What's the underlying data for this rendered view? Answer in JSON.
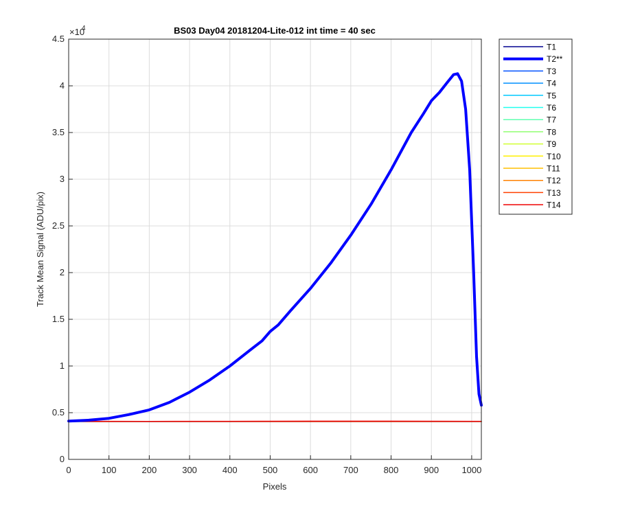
{
  "chart_data": {
    "type": "line",
    "title": "BS03 Day04 20181204-Lite-012 int time = 40 sec",
    "xlabel": "Pixels",
    "ylabel": "Track Mean Signal (ADU/pix)",
    "xlim": [
      0,
      1024
    ],
    "ylim": [
      0,
      45000
    ],
    "x_ticks": [
      0,
      100,
      200,
      300,
      400,
      500,
      600,
      700,
      800,
      900,
      1000
    ],
    "x_tick_labels": [
      "0",
      "100",
      "200",
      "300",
      "400",
      "500",
      "600",
      "700",
      "800",
      "900",
      "1000"
    ],
    "y_ticks": [
      0,
      5000,
      10000,
      15000,
      20000,
      25000,
      30000,
      35000,
      40000,
      45000
    ],
    "y_tick_labels": [
      "0",
      "0.5",
      "1",
      "1.5",
      "2",
      "2.5",
      "3",
      "3.5",
      "4",
      "4.5"
    ],
    "y_exponent_label": "×10",
    "y_exponent_power": "4",
    "grid": true,
    "legend_position": "outside-right",
    "series": [
      {
        "name": "T1",
        "color": "#00008f",
        "width": 1.5,
        "x": [
          0,
          1024
        ],
        "y": [
          4050,
          4050
        ]
      },
      {
        "name": "T2**",
        "color": "#0000ff",
        "width": 4,
        "highlight": true,
        "x": [
          0,
          50,
          100,
          150,
          200,
          250,
          300,
          350,
          400,
          450,
          480,
          500,
          520,
          550,
          600,
          650,
          700,
          750,
          800,
          850,
          880,
          900,
          920,
          940,
          955,
          965,
          975,
          985,
          995,
          1005,
          1012,
          1018,
          1024
        ],
        "y": [
          4100,
          4200,
          4400,
          4800,
          5300,
          6100,
          7200,
          8500,
          10000,
          11700,
          12700,
          13700,
          14400,
          15900,
          18300,
          21000,
          24000,
          27300,
          31000,
          35000,
          37000,
          38400,
          39300,
          40400,
          41200,
          41300,
          40500,
          37500,
          31000,
          20000,
          11000,
          7000,
          5800
        ]
      },
      {
        "name": "T3",
        "color": "#0050ff",
        "width": 1.5,
        "x": [
          0,
          1024
        ],
        "y": [
          4060,
          4060
        ]
      },
      {
        "name": "T4",
        "color": "#0090ff",
        "width": 1.5,
        "x": [
          0,
          1024
        ],
        "y": [
          4055,
          4055
        ]
      },
      {
        "name": "T5",
        "color": "#00c8ff",
        "width": 1.5,
        "x": [
          0,
          1024
        ],
        "y": [
          4060,
          4060
        ]
      },
      {
        "name": "T6",
        "color": "#20ffef",
        "width": 1.5,
        "x": [
          0,
          1024
        ],
        "y": [
          4065,
          4065
        ]
      },
      {
        "name": "T7",
        "color": "#60ffb0",
        "width": 1.5,
        "x": [
          0,
          1024
        ],
        "y": [
          4060,
          4060
        ]
      },
      {
        "name": "T8",
        "color": "#90ff70",
        "width": 1.5,
        "x": [
          0,
          1024
        ],
        "y": [
          4065,
          4065
        ]
      },
      {
        "name": "T9",
        "color": "#d0ff30",
        "width": 1.5,
        "x": [
          0,
          1024
        ],
        "y": [
          4060,
          4060
        ]
      },
      {
        "name": "T10",
        "color": "#ffef00",
        "width": 1.5,
        "x": [
          0,
          1024
        ],
        "y": [
          4060,
          4060
        ]
      },
      {
        "name": "T11",
        "color": "#ffbf00",
        "width": 1.5,
        "x": [
          0,
          1024
        ],
        "y": [
          4055,
          4055
        ]
      },
      {
        "name": "T12",
        "color": "#ff8000",
        "width": 1.5,
        "x": [
          0,
          1024
        ],
        "y": [
          4060,
          4060
        ]
      },
      {
        "name": "T13",
        "color": "#ff4000",
        "width": 1.5,
        "x": [
          0,
          1024
        ],
        "y": [
          4060,
          4060
        ]
      },
      {
        "name": "T14",
        "color": "#ef0000",
        "width": 1.5,
        "x": [
          0,
          100,
          200,
          300,
          400,
          500,
          600,
          700,
          800,
          900,
          1000,
          1024
        ],
        "y": [
          4060,
          4070,
          4060,
          4075,
          4070,
          4080,
          4085,
          4090,
          4085,
          4080,
          4075,
          4070
        ]
      }
    ]
  }
}
